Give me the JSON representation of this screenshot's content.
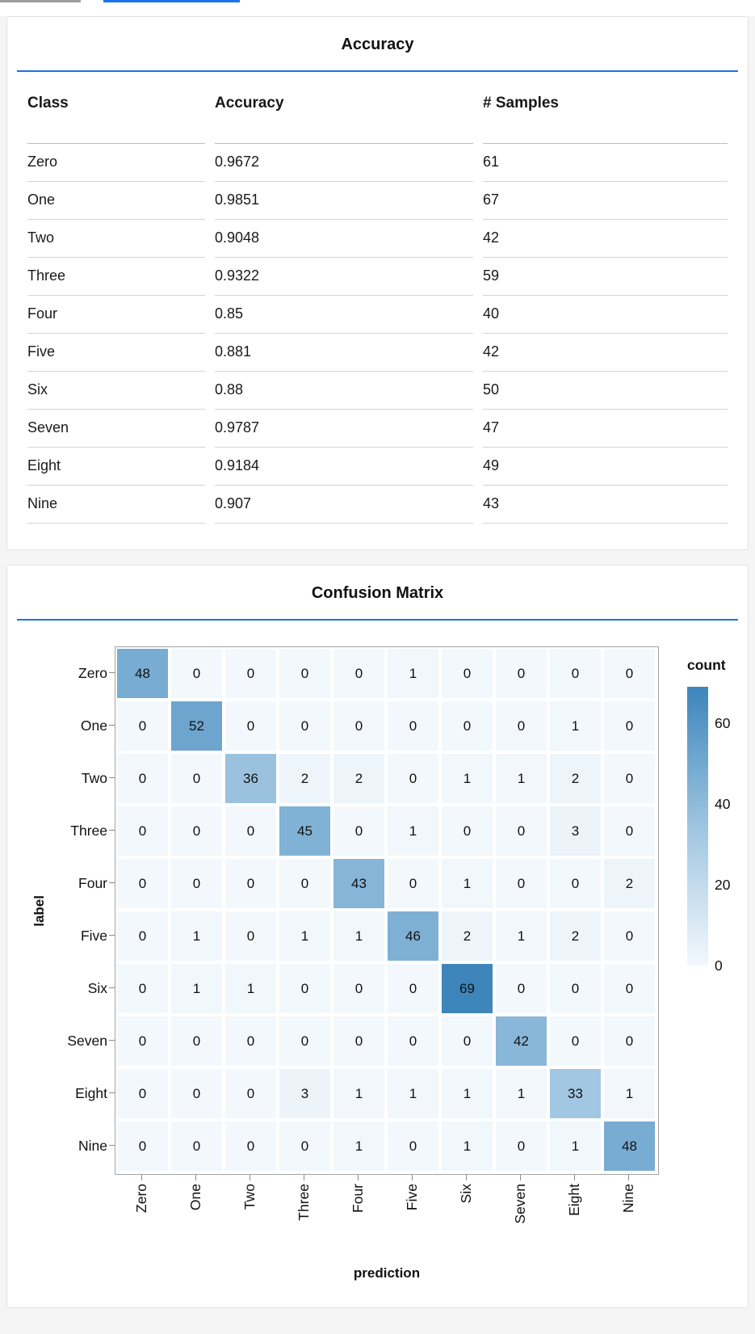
{
  "tabs": {
    "inactive_indicator_color": "#9e9e9e",
    "active_indicator_color": "#1a73e8"
  },
  "accuracy_card": {
    "title": "Accuracy",
    "accent_color": "#1a73e8",
    "table": {
      "columns": [
        "Class",
        "Accuracy",
        "# Samples"
      ],
      "rows": [
        [
          "Zero",
          "0.9672",
          "61"
        ],
        [
          "One",
          "0.9851",
          "67"
        ],
        [
          "Two",
          "0.9048",
          "42"
        ],
        [
          "Three",
          "0.9322",
          "59"
        ],
        [
          "Four",
          "0.85",
          "40"
        ],
        [
          "Five",
          "0.881",
          "42"
        ],
        [
          "Six",
          "0.88",
          "50"
        ],
        [
          "Seven",
          "0.9787",
          "47"
        ],
        [
          "Eight",
          "0.9184",
          "49"
        ],
        [
          "Nine",
          "0.907",
          "43"
        ]
      ]
    }
  },
  "confusion_card": {
    "title": "Confusion Matrix",
    "accent_color": "#1a73e8"
  },
  "chart_data": {
    "type": "heatmap",
    "title": "Confusion Matrix",
    "xlabel": "prediction",
    "ylabel": "label",
    "categories": [
      "Zero",
      "One",
      "Two",
      "Three",
      "Four",
      "Five",
      "Six",
      "Seven",
      "Eight",
      "Nine"
    ],
    "matrix": [
      [
        48,
        0,
        0,
        0,
        0,
        1,
        0,
        0,
        0,
        0
      ],
      [
        0,
        52,
        0,
        0,
        0,
        0,
        0,
        0,
        1,
        0
      ],
      [
        0,
        0,
        36,
        2,
        2,
        0,
        1,
        1,
        2,
        0
      ],
      [
        0,
        0,
        0,
        45,
        0,
        1,
        0,
        0,
        3,
        0
      ],
      [
        0,
        0,
        0,
        0,
        43,
        0,
        1,
        0,
        0,
        2
      ],
      [
        0,
        1,
        0,
        1,
        1,
        46,
        2,
        1,
        2,
        0
      ],
      [
        0,
        1,
        1,
        0,
        0,
        0,
        69,
        0,
        0,
        0
      ],
      [
        0,
        0,
        0,
        0,
        0,
        0,
        0,
        42,
        0,
        0
      ],
      [
        0,
        0,
        0,
        3,
        1,
        1,
        1,
        1,
        33,
        1
      ],
      [
        0,
        0,
        0,
        0,
        1,
        0,
        1,
        0,
        1,
        48
      ]
    ],
    "color_scale": {
      "low": "#f3f8fc",
      "mid": "#9ec5e1",
      "high": "#3d85bb",
      "domain": [
        0,
        69
      ]
    },
    "legend": {
      "title": "count",
      "ticks": [
        60,
        40,
        20,
        0
      ]
    }
  }
}
